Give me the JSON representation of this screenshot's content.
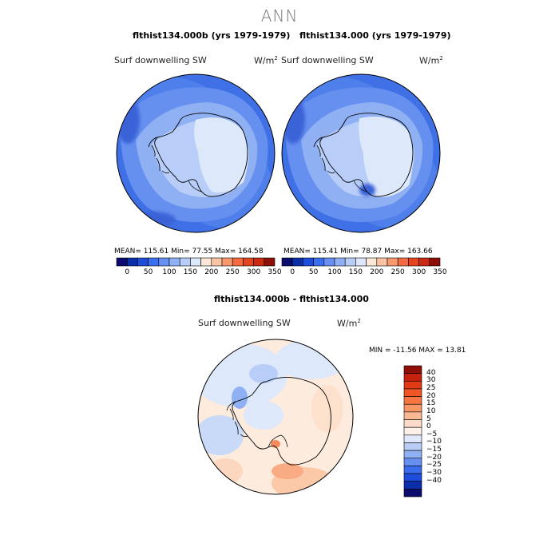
{
  "figure": {
    "title": "ANN"
  },
  "panels": [
    {
      "case_title": "flthist134.000b (yrs 1979-1979)",
      "variable": "Surf downwelling SW",
      "units_base": "W/m",
      "units_exp": "2",
      "stats": "MEAN= 115.61   Min=   77.55   Max= 164.58"
    },
    {
      "case_title": "flthist134.000 (yrs 1979-1979)",
      "variable": "Surf downwelling SW",
      "units_base": "W/m",
      "units_exp": "2",
      "stats": "MEAN= 115.41   Min=   78.87   Max= 163.66"
    }
  ],
  "colorbar_top": {
    "ticks": [
      "0",
      "50",
      "100",
      "150",
      "200",
      "250",
      "300",
      "350"
    ],
    "colors": [
      "#0c0c6e",
      "#0a2fa8",
      "#1e4ddc",
      "#3b6ff0",
      "#6690f2",
      "#8fb0f5",
      "#b8cdf7",
      "#dde8fa",
      "#fde7d6",
      "#fbc4a3",
      "#f8996d",
      "#f36a43",
      "#e54420",
      "#c92a10",
      "#8d0f08"
    ]
  },
  "diff_panel": {
    "title": "flthist134.000b - flthist134.000",
    "variable": "Surf downwelling SW",
    "units_base": "W/m",
    "units_exp": "2",
    "stats": "MIN = -11.56  MAX =  13.81"
  },
  "colorbar_diff": {
    "labels": [
      "40",
      "30",
      "25",
      "20",
      "15",
      "10",
      "5",
      "0",
      "−5",
      "−10",
      "−15",
      "−20",
      "−25",
      "−30",
      "−40"
    ],
    "colors": [
      "#8d0f08",
      "#c4220c",
      "#e03a16",
      "#f05526",
      "#f57543",
      "#f89766",
      "#fab895",
      "#fcdcc8",
      "#fdf0e8",
      "#dfe9fb",
      "#b9cef7",
      "#8fb0f4",
      "#668ff1",
      "#3b6cec",
      "#1e4ddc",
      "#0a2fa8",
      "#0c0c6e"
    ]
  }
}
